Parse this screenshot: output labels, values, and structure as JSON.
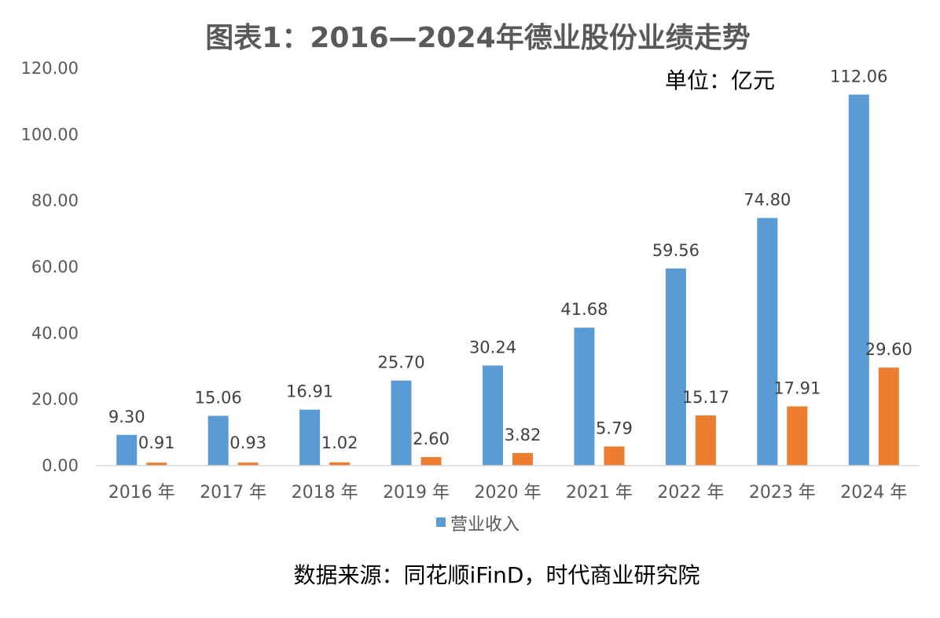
{
  "chart_data": {
    "type": "bar",
    "title": "图表1：2016—2024年德业股份业绩走势",
    "unit_label": "单位：亿元",
    "source_note": "数据来源：同花顺iFinD，时代商业研究院",
    "categories": [
      "2016 年",
      "2017 年",
      "2018 年",
      "2019 年",
      "2020 年",
      "2021 年",
      "2022 年",
      "2023 年",
      "2024 年"
    ],
    "y_ticks": [
      "0.00",
      "20.00",
      "40.00",
      "60.00",
      "80.00",
      "100.00",
      "120.00"
    ],
    "ylim": [
      0,
      120
    ],
    "grid": false,
    "legend_position": "bottom",
    "series": [
      {
        "name": "营业收入",
        "color": "#5B9BD5",
        "values": [
          9.3,
          15.06,
          16.91,
          25.7,
          30.24,
          41.68,
          59.56,
          74.8,
          112.06
        ],
        "labels": [
          "9.30",
          "15.06",
          "16.91",
          "25.70",
          "30.24",
          "41.68",
          "59.56",
          "74.80",
          "112.06"
        ]
      },
      {
        "color": "#ED7D31",
        "values": [
          0.91,
          0.93,
          1.02,
          2.6,
          3.82,
          5.79,
          15.17,
          17.91,
          29.6
        ],
        "labels": [
          "0.91",
          "0.93",
          "1.02",
          "2.60",
          "3.82",
          "5.79",
          "15.17",
          "17.91",
          "29.60"
        ]
      }
    ]
  }
}
